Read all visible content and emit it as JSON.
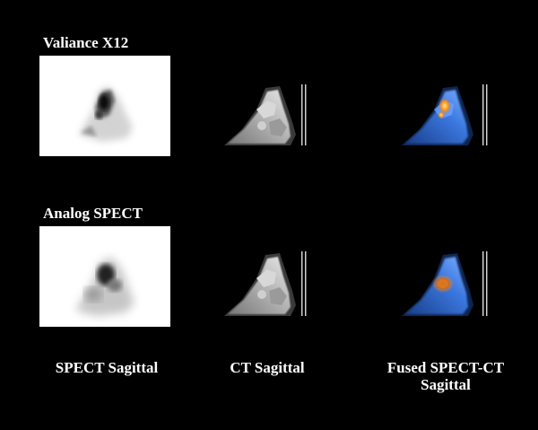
{
  "rows": [
    {
      "label": "Valiance X12"
    },
    {
      "label": "Analog SPECT"
    }
  ],
  "columns": [
    {
      "label": "SPECT Sagittal"
    },
    {
      "label": "CT Sagittal"
    },
    {
      "label": "Fused SPECT-CT",
      "label_line2": "Sagittal"
    }
  ],
  "colors": {
    "background": "#000000",
    "text": "#ffffff",
    "fused_tint": "#2f6fd8",
    "uptake_hot": "#ff9a1a"
  }
}
